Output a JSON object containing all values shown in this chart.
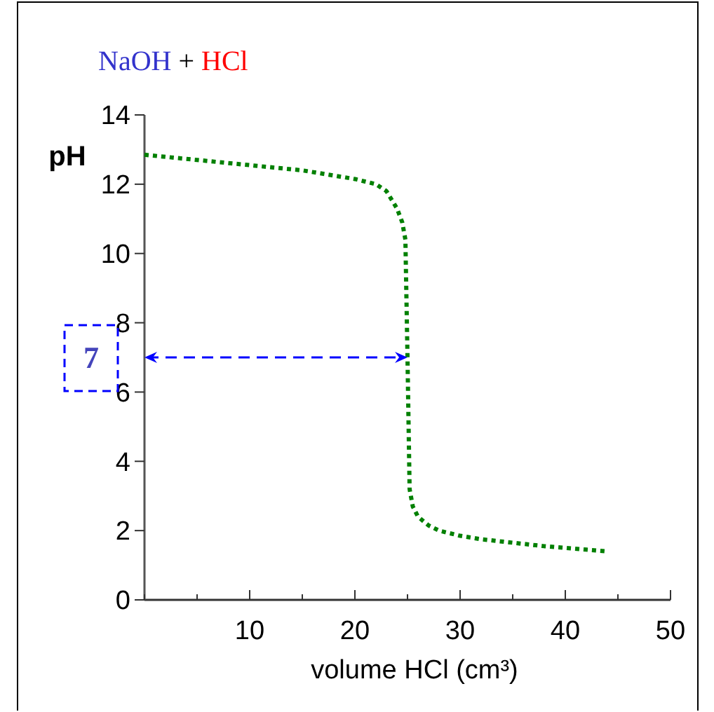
{
  "chart_data": {
    "type": "line",
    "title": "NaOH + HCl",
    "xlabel": "volume HCl  (cm³)",
    "ylabel": "pH",
    "x": [
      0,
      5,
      10,
      15,
      20,
      22,
      23,
      24,
      24.5,
      24.8,
      25,
      25.2,
      25.5,
      26,
      27,
      28,
      30,
      32,
      35,
      38,
      40,
      42,
      44
    ],
    "series": [
      {
        "color": "#008000",
        "values": [
          12.85,
          12.7,
          12.55,
          12.4,
          12.15,
          12.0,
          11.8,
          11.3,
          10.9,
          10.4,
          7,
          3.2,
          2.7,
          2.4,
          2.15,
          2.0,
          1.85,
          1.75,
          1.65,
          1.55,
          1.5,
          1.45,
          1.4
        ]
      }
    ],
    "xlim": [
      0,
      50
    ],
    "xticks": [
      {
        "value": 0,
        "label": null
      },
      {
        "value": 5,
        "label": null
      },
      10,
      {
        "value": 15,
        "label": null
      },
      20,
      {
        "value": 25,
        "label": null
      },
      30,
      {
        "value": 35,
        "label": null
      },
      40,
      {
        "value": 45,
        "label": null
      },
      50
    ],
    "ylim": [
      0,
      14
    ],
    "yticks": [
      0,
      2,
      4,
      6,
      8,
      10,
      12,
      14
    ],
    "grid": false,
    "marker": "none",
    "line_style": "dotted",
    "ref_lines": [
      {
        "axis": "y",
        "value": 7,
        "label": "7",
        "color": "#0000ff",
        "line_style": "dashed"
      }
    ]
  }
}
